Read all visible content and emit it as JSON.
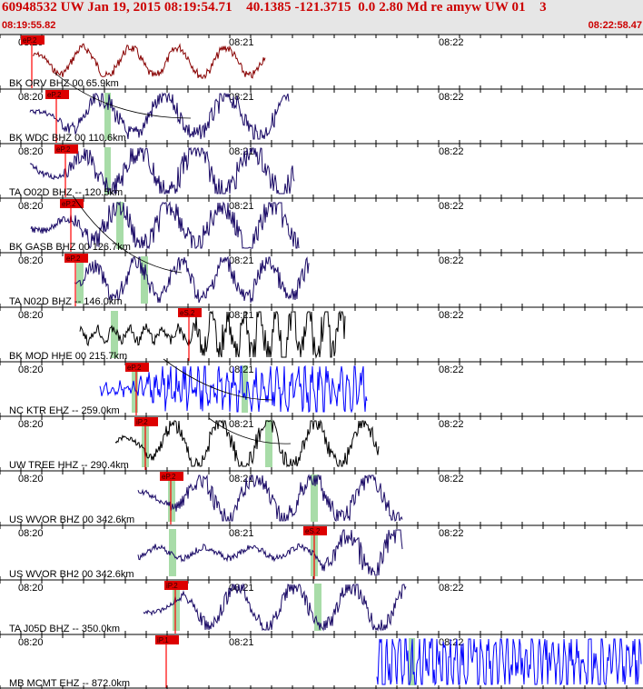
{
  "header": {
    "title": "60948532 UW Jan 19, 2015 08:19:54.71    40.1385 -121.3715  0.0 2.80 Md re amyw UW 01    3",
    "start_time": "08:19:55.82",
    "end_time": "08:22:58.47"
  },
  "colors": {
    "header_bg": "#e6e6e6",
    "header_text": "#cc0000",
    "pick": "#ff0000",
    "pick_label_bg": "#dd0000",
    "window": "#a8dca8",
    "trace_navy": "#1a0a66",
    "trace_black": "#000000",
    "trace_blue": "#0000ff",
    "trace_dark_red": "#880000"
  },
  "time_labels": [
    "08:20",
    "08:21",
    "08:22"
  ],
  "channels": [
    {
      "label": "BK ORV BHZ 00 65.9km",
      "pick": "eP.2",
      "color": "trace_dark_red"
    },
    {
      "label": "BK WDC BHZ 00 110.6km",
      "pick": "eP.2",
      "color": "trace_navy"
    },
    {
      "label": "TA O02D BHZ -- 120.5km",
      "pick": "eP.2",
      "color": "trace_navy"
    },
    {
      "label": "BK GASB BHZ 00 126.7km",
      "pick": "eP.2",
      "color": "trace_navy"
    },
    {
      "label": "TA N02D BHZ -- 146.0km",
      "pick": "eP.2",
      "color": "trace_navy"
    },
    {
      "label": "BK MOD HHE 00 215.7km",
      "pick": "eS.2",
      "color": "trace_black"
    },
    {
      "label": "NC KTR EHZ -- 259.0km",
      "pick": "eP.2",
      "color": "trace_blue"
    },
    {
      "label": "UW TREE HHZ -- 290.4km",
      "pick": "iP.2",
      "color": "trace_black"
    },
    {
      "label": "US WVOR BHZ 00 342.6km",
      "pick": "eP.2",
      "color": "trace_navy"
    },
    {
      "label": "US WVOR BH2 00 342.6km",
      "pick": "eS.2",
      "color": "trace_navy"
    },
    {
      "label": "TA J05D BHZ -- 350.0km",
      "pick": "iP.2",
      "color": "trace_navy"
    },
    {
      "label": "MB MCMT EHZ -- 872.0km",
      "pick": "iP.1",
      "color": "trace_blue"
    }
  ]
}
